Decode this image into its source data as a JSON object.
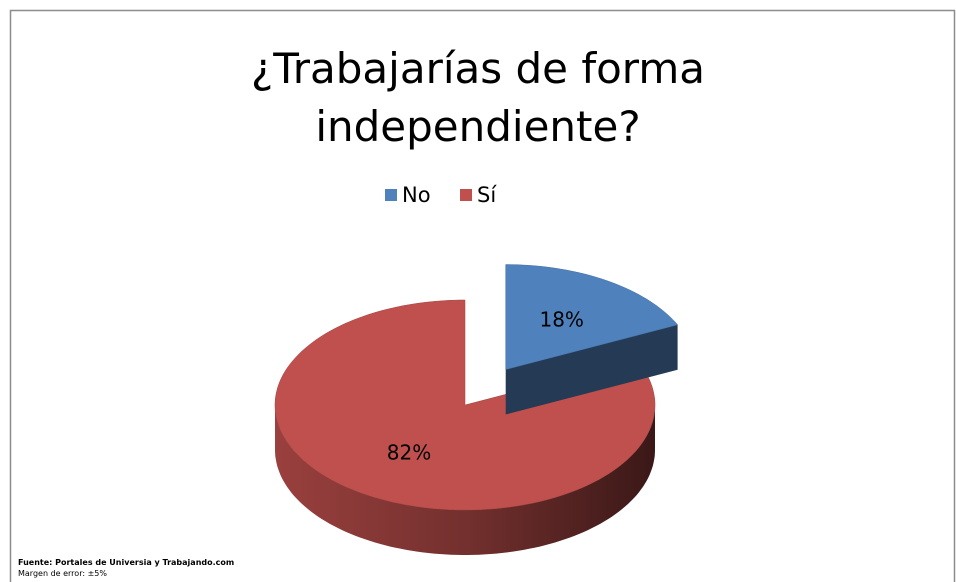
{
  "chart_data": {
    "type": "pie",
    "title": "¿Trabajarías de forma independiente?",
    "categories": [
      "No",
      "Sí"
    ],
    "values": [
      18,
      82
    ],
    "value_labels": [
      "18%",
      "82%"
    ],
    "colors": [
      "#4f81bd",
      "#c0504d"
    ],
    "legend": "top",
    "source": "Fuente: Portales de Universia y Trabajando.com",
    "note": "Margen de error: ±5%"
  }
}
